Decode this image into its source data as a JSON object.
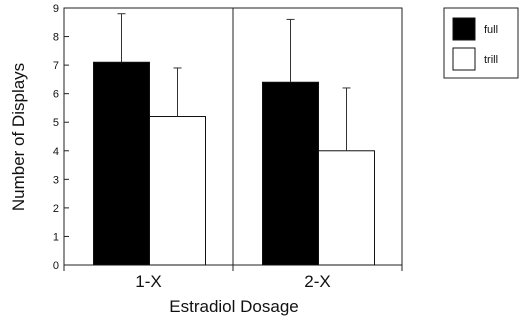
{
  "chart_data": {
    "type": "bar",
    "title": "",
    "xlabel": "Estradiol Dosage",
    "ylabel": "Number of Displays",
    "categories": [
      "1-X",
      "2-X"
    ],
    "ylim": [
      0,
      9
    ],
    "yticks": [
      "0",
      "1",
      "2",
      "3",
      "4",
      "5",
      "6",
      "7",
      "8",
      "9"
    ],
    "series": [
      {
        "name": "full",
        "color": "#000000",
        "values": [
          7.1,
          6.4
        ],
        "errors": [
          1.7,
          2.2
        ]
      },
      {
        "name": "trill",
        "color": "#ffffff",
        "values": [
          5.2,
          4.0
        ],
        "errors": [
          1.7,
          2.2
        ]
      }
    ],
    "error_bars": "upper",
    "legend_position": "top-right",
    "grid": false
  }
}
